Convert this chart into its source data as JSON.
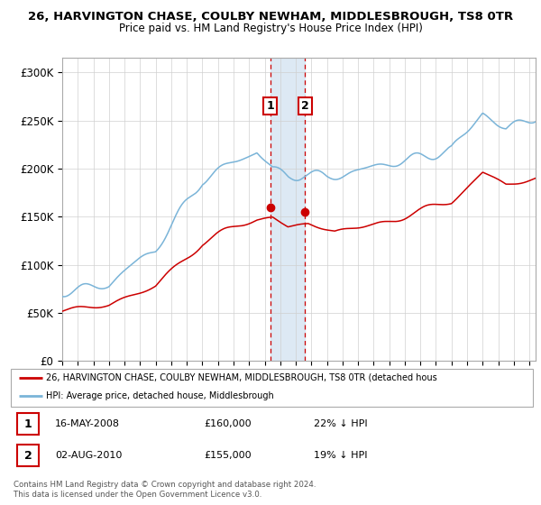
{
  "title_line1": "26, HARVINGTON CHASE, COULBY NEWHAM, MIDDLESBROUGH, TS8 0TR",
  "title_line2": "Price paid vs. HM Land Registry's House Price Index (HPI)",
  "ylabel_ticks": [
    "£0",
    "£50K",
    "£100K",
    "£150K",
    "£200K",
    "£250K",
    "£300K"
  ],
  "ytick_values": [
    0,
    50000,
    100000,
    150000,
    200000,
    250000,
    300000
  ],
  "ylim": [
    0,
    315000
  ],
  "xlim_start": 1995.0,
  "xlim_end": 2025.4,
  "hpi_color": "#7ab4d8",
  "price_color": "#cc0000",
  "sale1_date_x": 2008.37,
  "sale1_price": 160000,
  "sale2_date_x": 2010.58,
  "sale2_price": 155000,
  "shade_color": "#cfe0f0",
  "vline_color": "#cc0000",
  "legend_label1": "26, HARVINGTON CHASE, COULBY NEWHAM, MIDDLESBROUGH, TS8 0TR (detached hous",
  "legend_label2": "HPI: Average price, detached house, Middlesbrough",
  "table_row1": [
    "1",
    "16-MAY-2008",
    "£160,000",
    "22% ↓ HPI"
  ],
  "table_row2": [
    "2",
    "02-AUG-2010",
    "£155,000",
    "19% ↓ HPI"
  ],
  "footer": "Contains HM Land Registry data © Crown copyright and database right 2024.\nThis data is licensed under the Open Government Licence v3.0.",
  "bg_color": "#ffffff"
}
